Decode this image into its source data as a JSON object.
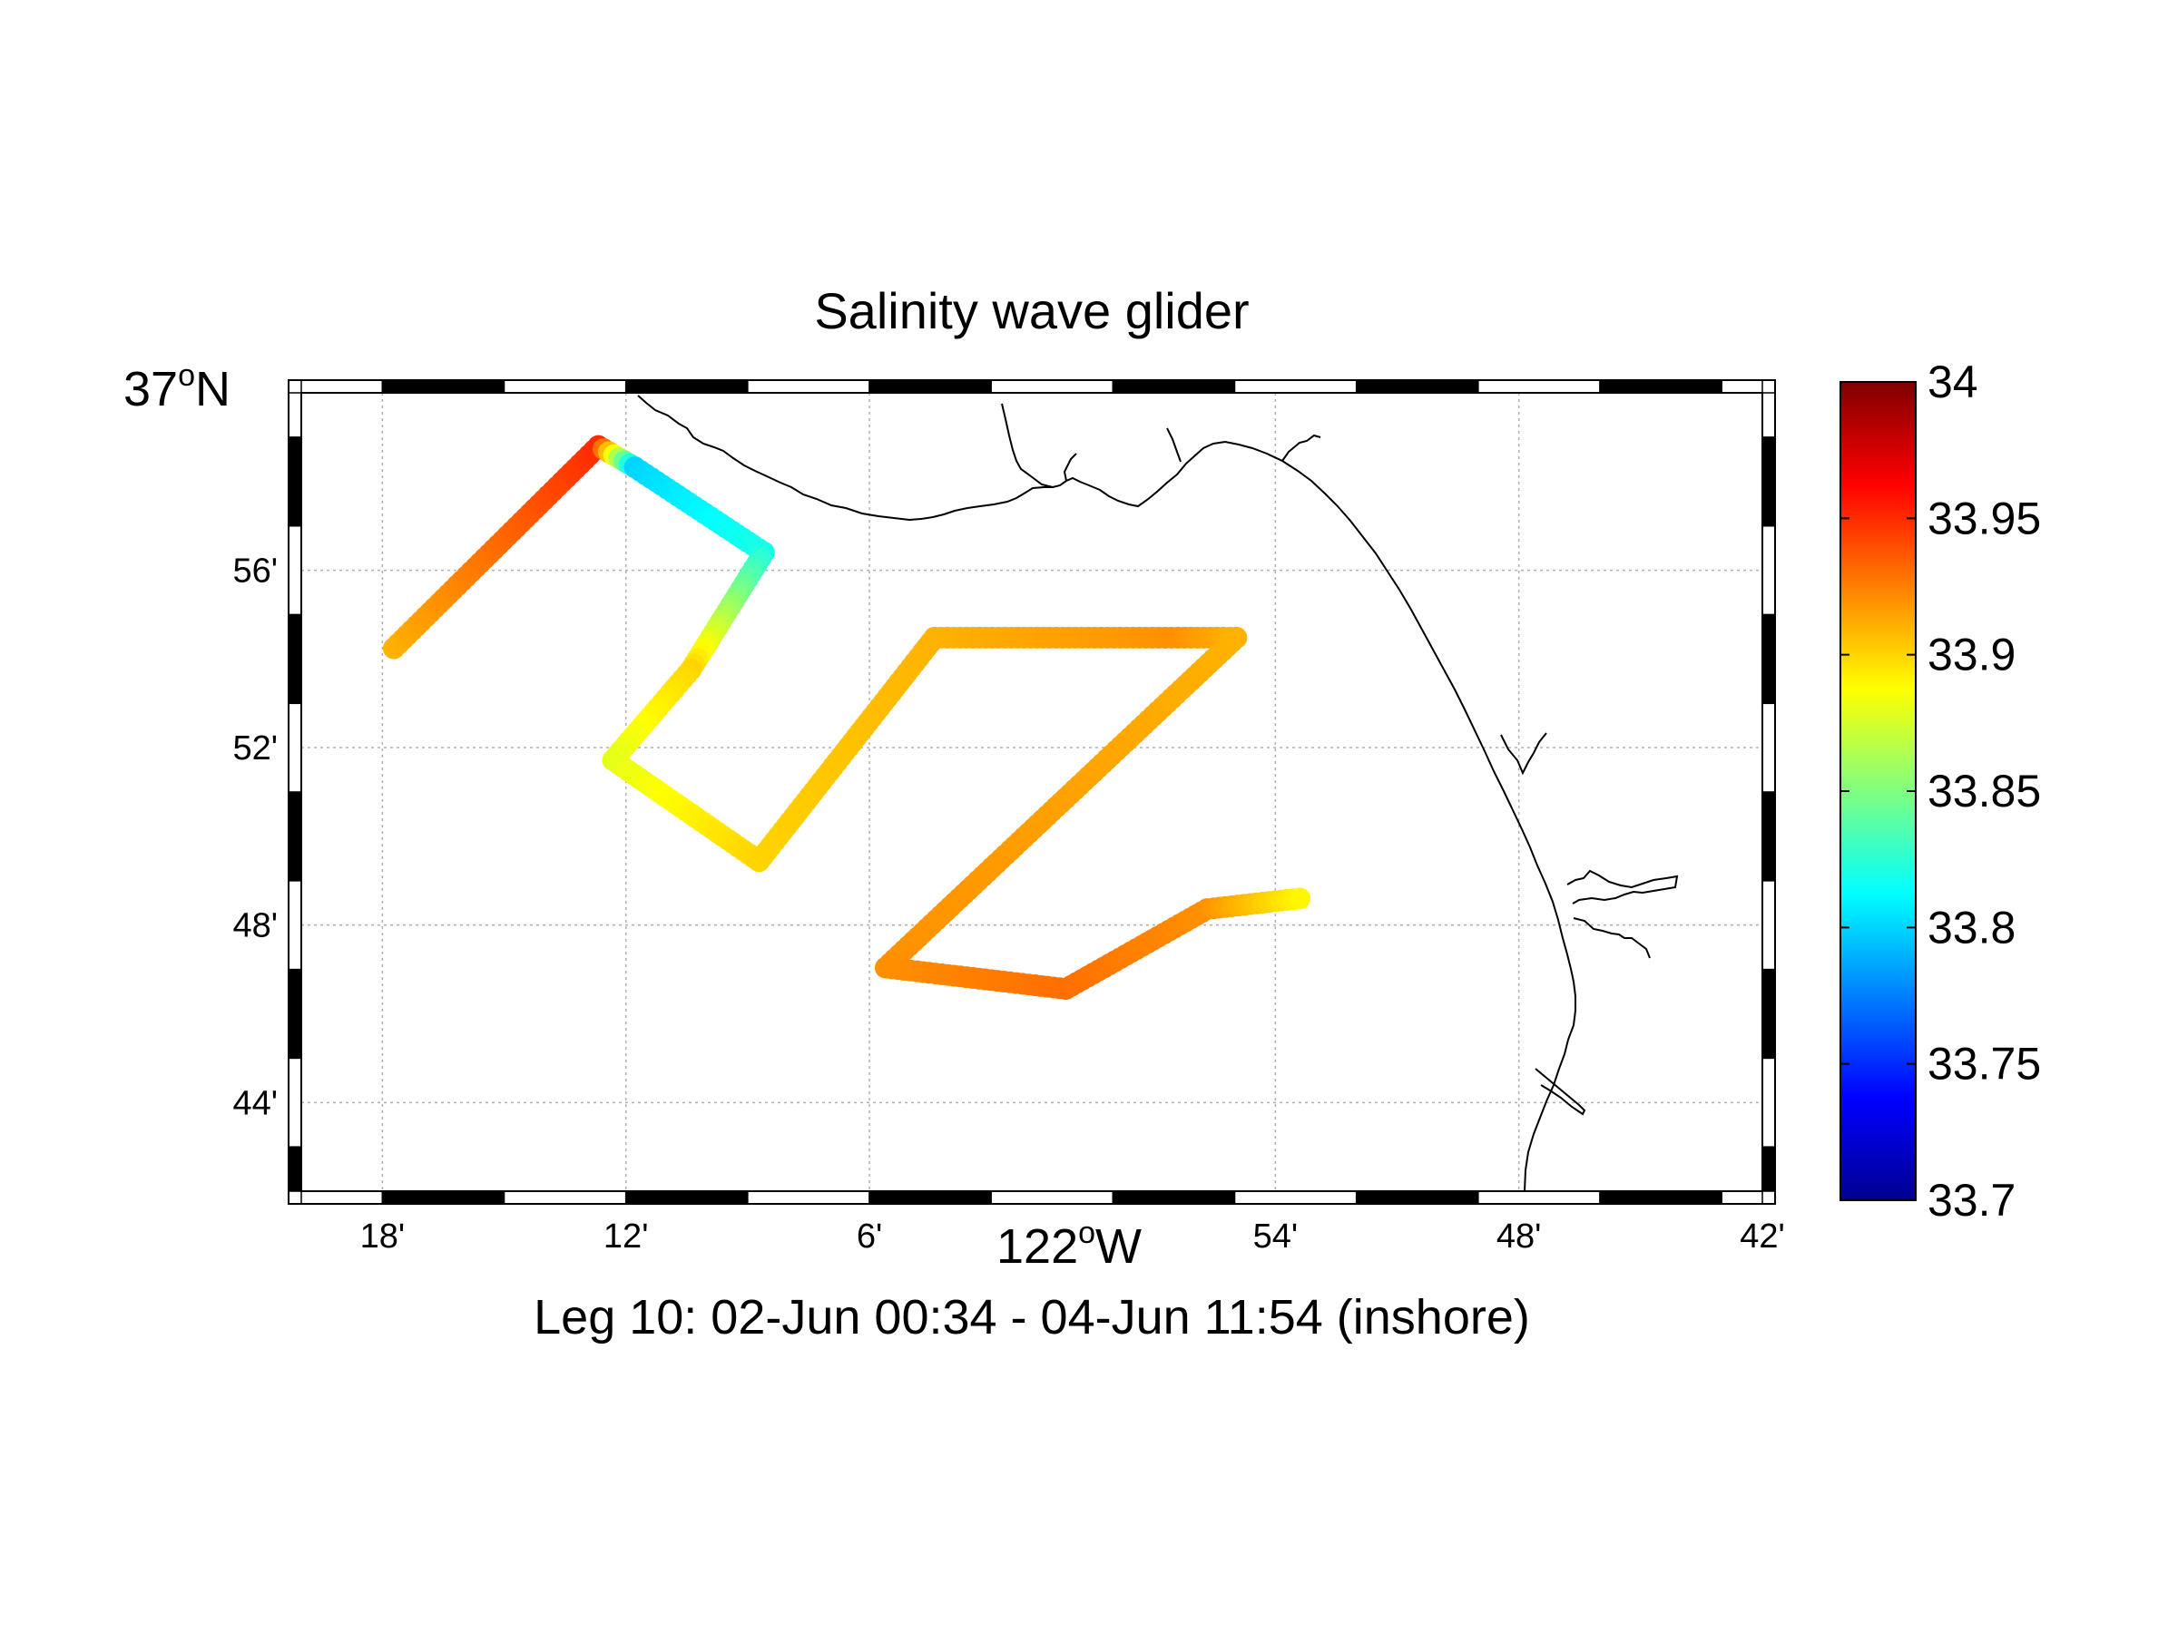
{
  "chart_data": {
    "type": "scatter",
    "title": "Salinity wave glider",
    "subtitle": "Leg 10: 02-Jun 00:34 - 04-Jun 11:54 (inshore)",
    "x_axis": {
      "label_main": "122",
      "label_sup": "o",
      "label_tail": "W",
      "range_min": [
        -122.3,
        -121.7
      ],
      "ticks": [
        {
          "value": -122.2667,
          "label": "18'"
        },
        {
          "value": -122.1667,
          "label": "12'"
        },
        {
          "value": -122.0667,
          "label": "6'"
        },
        {
          "value": -121.9,
          "label": "54'"
        },
        {
          "value": -121.8,
          "label": "48'"
        },
        {
          "value": -121.7,
          "label": "42'"
        }
      ]
    },
    "y_axis": {
      "label_main": "37",
      "label_sup": "o",
      "label_tail": "N",
      "range": [
        36.7,
        37.0
      ],
      "ticks": [
        {
          "value": 36.9333,
          "label": "56'"
        },
        {
          "value": 36.8667,
          "label": "52'"
        },
        {
          "value": 36.8,
          "label": "48'"
        },
        {
          "value": 36.7333,
          "label": "44'"
        }
      ]
    },
    "grid": true,
    "colorbar": {
      "colormap": "jet",
      "range": [
        33.7,
        34.0
      ],
      "ticks": [
        {
          "value": 34.0,
          "label": "34"
        },
        {
          "value": 33.95,
          "label": "33.95"
        },
        {
          "value": 33.9,
          "label": "33.9"
        },
        {
          "value": 33.85,
          "label": "33.85"
        },
        {
          "value": 33.8,
          "label": "33.8"
        },
        {
          "value": 33.75,
          "label": "33.75"
        },
        {
          "value": 33.7,
          "label": "33.7"
        }
      ]
    },
    "track_vertices": [
      {
        "lon": -122.262,
        "lat": 36.904,
        "sal": 33.91
      },
      {
        "lon": -122.178,
        "lat": 36.98,
        "sal": 33.95
      },
      {
        "lon": -122.163,
        "lat": 36.972,
        "sal": 33.8
      },
      {
        "lon": -122.11,
        "lat": 36.94,
        "sal": 33.82
      },
      {
        "lon": -122.14,
        "lat": 36.896,
        "sal": 33.9
      },
      {
        "lon": -122.172,
        "lat": 36.862,
        "sal": 33.88
      },
      {
        "lon": -122.112,
        "lat": 36.824,
        "sal": 33.9
      },
      {
        "lon": -122.04,
        "lat": 36.908,
        "sal": 33.91
      },
      {
        "lon": -121.94,
        "lat": 36.908,
        "sal": 33.92
      },
      {
        "lon": -121.916,
        "lat": 36.908,
        "sal": 33.91
      },
      {
        "lon": -122.06,
        "lat": 36.784,
        "sal": 33.92
      },
      {
        "lon": -121.986,
        "lat": 36.776,
        "sal": 33.93
      },
      {
        "lon": -121.928,
        "lat": 36.806,
        "sal": 33.92
      },
      {
        "lon": -121.89,
        "lat": 36.81,
        "sal": 33.89
      }
    ]
  }
}
